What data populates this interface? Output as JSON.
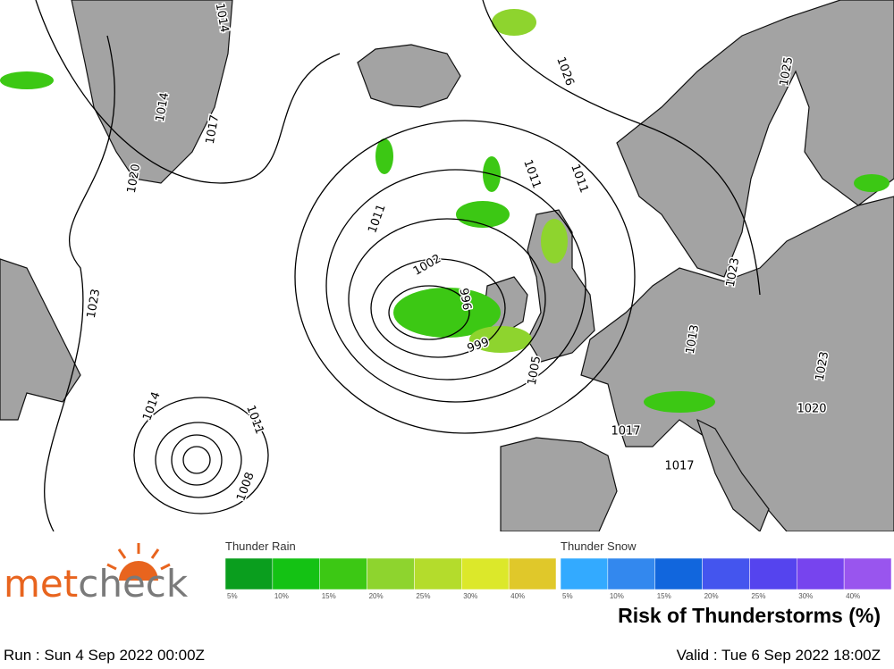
{
  "map": {
    "isobar_labels": [
      "1014",
      "1017",
      "1020",
      "1023",
      "1026",
      "1025",
      "1011",
      "1011",
      "1002",
      "996",
      "999",
      "1005",
      "1014",
      "1011",
      "1008",
      "1017",
      "1020",
      "1023",
      "1017",
      "1011",
      "1014",
      "1023",
      "1013"
    ]
  },
  "logo": [
    "met",
    "check"
  ],
  "legend": {
    "rain_title": "Thunder Rain",
    "snow_title": "Thunder Snow",
    "rain": [
      {
        "label": "5%",
        "color": "#0a9e1e"
      },
      {
        "label": "10%",
        "color": "#14c214"
      },
      {
        "label": "15%",
        "color": "#3cc814"
      },
      {
        "label": "20%",
        "color": "#8ed42e"
      },
      {
        "label": "25%",
        "color": "#b4dc2c"
      },
      {
        "label": "30%",
        "color": "#dce82a"
      },
      {
        "label": "40%",
        "color": "#e0c82a"
      }
    ],
    "snow": [
      {
        "label": "5%",
        "color": "#33aaff"
      },
      {
        "label": "10%",
        "color": "#3388ee"
      },
      {
        "label": "15%",
        "color": "#1166dd"
      },
      {
        "label": "20%",
        "color": "#4455ee"
      },
      {
        "label": "25%",
        "color": "#5544ee"
      },
      {
        "label": "30%",
        "color": "#7744ee"
      },
      {
        "label": "40%",
        "color": "#9955ee"
      }
    ]
  },
  "title": "Risk of Thunderstorms (%)",
  "run": "Run : Sun 4 Sep 2022 00:00Z",
  "valid": "Valid : Tue 6 Sep 2022 18:00Z"
}
